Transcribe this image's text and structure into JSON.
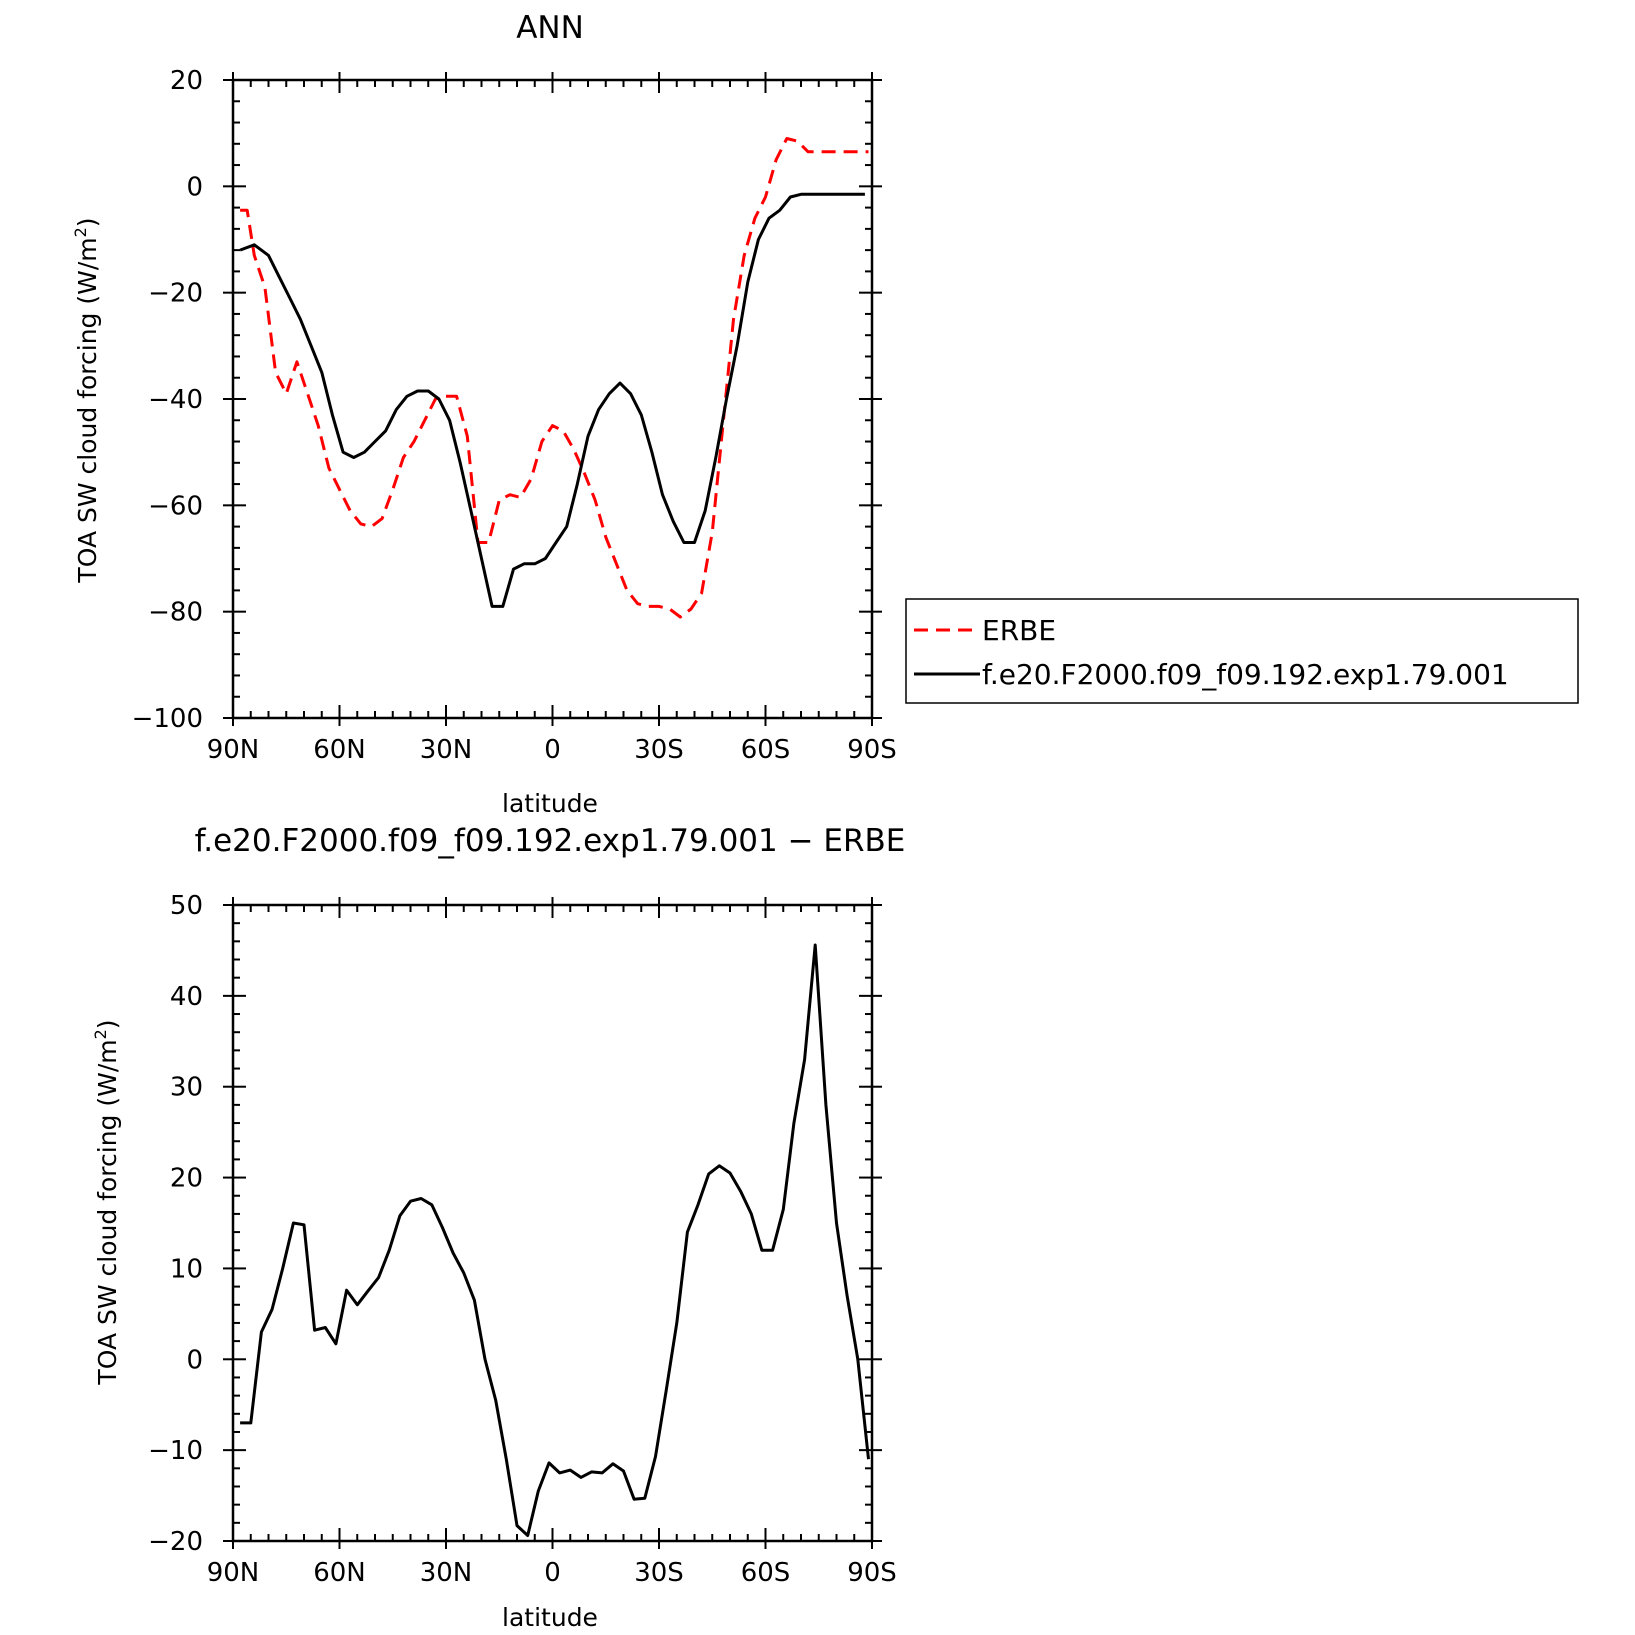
{
  "chart_data": [
    {
      "type": "line",
      "title": "ANN",
      "xlabel": "latitude",
      "ylabel": "TOA SW cloud forcing (W/m2)",
      "xlim": [
        90,
        -90
      ],
      "ylim": [
        -100,
        20
      ],
      "xticks": [
        90,
        60,
        30,
        0,
        -30,
        -60,
        -90
      ],
      "xtick_labels": [
        "90N",
        "60N",
        "30N",
        "0",
        "30S",
        "60S",
        "90S"
      ],
      "yticks": [
        20,
        0,
        -20,
        -40,
        -60,
        -80,
        -100
      ],
      "ytick_labels": [
        "20",
        "0",
        "−20",
        "−40",
        "−60",
        "−80",
        "−100"
      ],
      "legend_position": "right",
      "series": [
        {
          "name": "ERBE",
          "color": "#ff0000",
          "dash": "dashed",
          "x": [
            88,
            86,
            84,
            81,
            78,
            75,
            72,
            69,
            66,
            63,
            60,
            57,
            54,
            51,
            48,
            45,
            42,
            39,
            36,
            33,
            30,
            27,
            24,
            21,
            18,
            15,
            12,
            9,
            6,
            3,
            0,
            -3,
            -6,
            -9,
            -12,
            -15,
            -18,
            -21,
            -24,
            -27,
            -30,
            -33,
            -36,
            -39,
            -42,
            -45,
            -48,
            -51,
            -54,
            -57,
            -60,
            -63,
            -66,
            -69,
            -72,
            -75,
            -78,
            -81,
            -84,
            -87,
            -89
          ],
          "y": [
            -4.5,
            -4.5,
            -13,
            -19,
            -35,
            -39,
            -33,
            -39,
            -45,
            -53,
            -57,
            -61,
            -63.5,
            -64,
            -62.5,
            -57,
            -51,
            -48,
            -44,
            -40,
            -39.5,
            -39.5,
            -47,
            -67,
            -67,
            -59,
            -58,
            -58.5,
            -55,
            -48,
            -45,
            -46,
            -49.5,
            -54,
            -59,
            -66,
            -71,
            -76,
            -78.5,
            -79,
            -79,
            -79.5,
            -81,
            -79.5,
            -76.5,
            -65,
            -45,
            -25,
            -13,
            -6,
            -2,
            5,
            9,
            8.5,
            6.5,
            6.5,
            6.5,
            6.5,
            6.5,
            6.5,
            6.5
          ]
        },
        {
          "name": "f.e20.F2000.f09_f09.192.exp1.79.001",
          "color": "#000000",
          "dash": "solid",
          "x": [
            88,
            84,
            80,
            77,
            74,
            71,
            68,
            65,
            62,
            59,
            56,
            53,
            50,
            47,
            44,
            41,
            38,
            35,
            32,
            29,
            26,
            23,
            20,
            17,
            14,
            11,
            8,
            5,
            2,
            -1,
            -4,
            -7,
            -10,
            -13,
            -16,
            -19,
            -22,
            -25,
            -28,
            -31,
            -34,
            -37,
            -40,
            -43,
            -46,
            -49,
            -52,
            -55,
            -58,
            -61,
            -64,
            -67,
            -70,
            -73,
            -76,
            -79,
            -82,
            -85,
            -88
          ],
          "y": [
            -12,
            -11,
            -13,
            -17,
            -21,
            -25,
            -30,
            -35,
            -43,
            -50,
            -51,
            -50,
            -48,
            -46,
            -42,
            -39.5,
            -38.5,
            -38.5,
            -40,
            -44,
            -52,
            -61,
            -70,
            -79,
            -79,
            -72,
            -71,
            -71,
            -70,
            -67,
            -64,
            -56,
            -47,
            -42,
            -39,
            -37,
            -39,
            -43,
            -50,
            -58,
            -63,
            -67,
            -67,
            -61,
            -51,
            -40,
            -30,
            -18,
            -10,
            -6,
            -4.5,
            -2,
            -1.5,
            -1.5,
            -1.5,
            -1.5,
            -1.5,
            -1.5,
            -1.5
          ]
        }
      ]
    },
    {
      "type": "line",
      "title": "f.e20.F2000.f09_f09.192.exp1.79.001 − ERBE",
      "xlabel": "latitude",
      "ylabel": "TOA SW cloud forcing (W/m2)",
      "xlim": [
        90,
        -90
      ],
      "ylim": [
        -20,
        50
      ],
      "xticks": [
        90,
        60,
        30,
        0,
        -30,
        -60,
        -90
      ],
      "xtick_labels": [
        "90N",
        "60N",
        "30N",
        "0",
        "30S",
        "60S",
        "90S"
      ],
      "yticks": [
        50,
        40,
        30,
        20,
        10,
        0,
        -10,
        -20
      ],
      "ytick_labels": [
        "50",
        "40",
        "30",
        "20",
        "10",
        "0",
        "−10",
        "−20"
      ],
      "series": [
        {
          "color": "#000000",
          "dash": "solid",
          "x": [
            88,
            85,
            82,
            79,
            76,
            73,
            70,
            67,
            64,
            61,
            58,
            55,
            52,
            49,
            46,
            43,
            40,
            37,
            34,
            31,
            28,
            25,
            22,
            19,
            16,
            13,
            10,
            7,
            4,
            1,
            -2,
            -5,
            -8,
            -11,
            -14,
            -17,
            -20,
            -23,
            -26,
            -29,
            -32,
            -35,
            -38,
            -41,
            -44,
            -47,
            -50,
            -53,
            -56,
            -59,
            -62,
            -65,
            -68,
            -71,
            -74,
            -77,
            -80,
            -83,
            -86,
            -89
          ],
          "y": [
            -7,
            -7,
            3,
            5.5,
            10,
            15,
            14.8,
            3.2,
            3.5,
            1.7,
            7.6,
            6,
            7.5,
            9,
            12,
            15.8,
            17.4,
            17.7,
            17,
            14.5,
            11.7,
            9.5,
            6.5,
            0,
            -4.5,
            -11,
            -18.3,
            -19.4,
            -14.5,
            -11.4,
            -12.5,
            -12.2,
            -13,
            -12.4,
            -12.5,
            -11.5,
            -12.3,
            -15.4,
            -15.3,
            -10.7,
            -3.5,
            4,
            14,
            17,
            20.4,
            21.3,
            20.5,
            18.5,
            16,
            12,
            12,
            16.5,
            26,
            33,
            45.6,
            28,
            15,
            7,
            0,
            -11
          ]
        }
      ]
    }
  ],
  "legend": {
    "items": [
      "ERBE",
      "f.e20.F2000.f09_f09.192.exp1.79.001"
    ]
  }
}
